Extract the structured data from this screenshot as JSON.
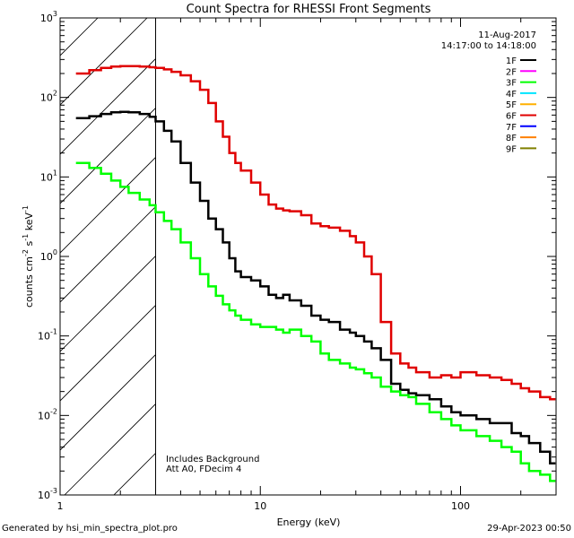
{
  "chart_data": {
    "type": "line",
    "title": "Count Spectra for RHESSI Front Segments",
    "xlabel": "Energy (keV)",
    "ylabel": "counts cm",
    "ylabel_parts": [
      "counts cm",
      "-2",
      " s",
      "-1",
      " keV",
      "-1"
    ],
    "xscale": "log",
    "yscale": "log",
    "xlim": [
      1,
      300
    ],
    "ylim": [
      0.001,
      1000
    ],
    "x_ticks": [
      {
        "value": 1,
        "label": "1"
      },
      {
        "value": 10,
        "label": "10"
      },
      {
        "value": 100,
        "label": "100"
      }
    ],
    "y_ticks": [
      {
        "value": 1000,
        "base": "10",
        "exp": "3"
      },
      {
        "value": 100,
        "base": "10",
        "exp": "2"
      },
      {
        "value": 10,
        "base": "10",
        "exp": "1"
      },
      {
        "value": 1,
        "base": "10",
        "exp": "0"
      },
      {
        "value": 0.1,
        "base": "10",
        "exp": "-1"
      },
      {
        "value": 0.01,
        "base": "10",
        "exp": "-2"
      },
      {
        "value": 0.001,
        "base": "10",
        "exp": "-3"
      }
    ],
    "date_label": "11-Aug-2017",
    "time_label": "14:17:00 to 14:18:00",
    "shaded_region": {
      "x_min": 1,
      "x_max": 3
    },
    "annotations": [
      "Includes Background",
      "Att A0, FDecim 4"
    ],
    "legend": [
      {
        "name": "1F",
        "color": "#000000"
      },
      {
        "name": "2F",
        "color": "#ff00ff"
      },
      {
        "name": "3F",
        "color": "#00ff00"
      },
      {
        "name": "4F",
        "color": "#00e5ff"
      },
      {
        "name": "5F",
        "color": "#ffb000"
      },
      {
        "name": "6F",
        "color": "#e00000"
      },
      {
        "name": "7F",
        "color": "#0000ff"
      },
      {
        "name": "8F",
        "color": "#ff8000"
      },
      {
        "name": "9F",
        "color": "#808000"
      }
    ],
    "series": [
      {
        "name": "1F",
        "color": "#000000",
        "x": [
          1.2,
          1.4,
          1.6,
          1.8,
          2.0,
          2.2,
          2.5,
          2.8,
          3.0,
          3.3,
          3.6,
          4.0,
          4.5,
          5.0,
          5.5,
          6.0,
          6.5,
          7.0,
          7.5,
          8.0,
          9.0,
          10,
          11,
          12,
          13,
          14,
          16,
          18,
          20,
          22,
          25,
          28,
          30,
          33,
          36,
          40,
          45,
          50,
          55,
          60,
          70,
          80,
          90,
          100,
          120,
          140,
          160,
          180,
          200,
          220,
          250,
          280
        ],
        "y": [
          55,
          58,
          62,
          65,
          66,
          65,
          62,
          57,
          50,
          38,
          28,
          15,
          8.5,
          5.0,
          3.0,
          2.2,
          1.5,
          0.95,
          0.65,
          0.55,
          0.5,
          0.42,
          0.33,
          0.3,
          0.33,
          0.28,
          0.24,
          0.18,
          0.16,
          0.15,
          0.12,
          0.11,
          0.1,
          0.085,
          0.07,
          0.05,
          0.025,
          0.021,
          0.019,
          0.018,
          0.016,
          0.013,
          0.011,
          0.01,
          0.009,
          0.008,
          0.008,
          0.006,
          0.0055,
          0.0045,
          0.0035,
          0.0025
        ]
      },
      {
        "name": "3F",
        "color": "#00ff00",
        "x": [
          1.2,
          1.4,
          1.6,
          1.8,
          2.0,
          2.2,
          2.5,
          2.8,
          3.0,
          3.3,
          3.6,
          4.0,
          4.5,
          5.0,
          5.5,
          6.0,
          6.5,
          7.0,
          7.5,
          8.0,
          9.0,
          10,
          11,
          12,
          13,
          14,
          16,
          18,
          20,
          22,
          25,
          28,
          30,
          33,
          36,
          40,
          45,
          50,
          55,
          60,
          70,
          80,
          90,
          100,
          120,
          140,
          160,
          180,
          200,
          220,
          250,
          280
        ],
        "y": [
          15,
          13,
          11,
          9.0,
          7.5,
          6.3,
          5.2,
          4.4,
          3.6,
          2.8,
          2.2,
          1.5,
          0.95,
          0.6,
          0.42,
          0.32,
          0.25,
          0.21,
          0.18,
          0.16,
          0.14,
          0.13,
          0.13,
          0.12,
          0.11,
          0.12,
          0.1,
          0.085,
          0.06,
          0.05,
          0.045,
          0.04,
          0.038,
          0.034,
          0.03,
          0.023,
          0.02,
          0.018,
          0.017,
          0.014,
          0.011,
          0.009,
          0.0075,
          0.0065,
          0.0055,
          0.0048,
          0.004,
          0.0035,
          0.0025,
          0.002,
          0.0018,
          0.0015
        ]
      },
      {
        "name": "6F",
        "color": "#e00000",
        "x": [
          1.2,
          1.4,
          1.6,
          1.8,
          2.0,
          2.2,
          2.5,
          2.8,
          3.0,
          3.3,
          3.6,
          4.0,
          4.5,
          5.0,
          5.5,
          6.0,
          6.5,
          7.0,
          7.5,
          8.0,
          9.0,
          10,
          11,
          12,
          13,
          14,
          16,
          18,
          20,
          22,
          25,
          28,
          30,
          33,
          36,
          40,
          45,
          50,
          55,
          60,
          70,
          80,
          90,
          100,
          120,
          140,
          160,
          180,
          200,
          220,
          250,
          280
        ],
        "y": [
          200,
          220,
          235,
          245,
          248,
          248,
          245,
          240,
          235,
          225,
          210,
          190,
          160,
          125,
          85,
          50,
          32,
          20,
          15,
          12,
          8.5,
          6.0,
          4.5,
          4.0,
          3.8,
          3.7,
          3.3,
          2.6,
          2.4,
          2.3,
          2.1,
          1.8,
          1.5,
          1.0,
          0.6,
          0.15,
          0.06,
          0.045,
          0.04,
          0.035,
          0.03,
          0.032,
          0.03,
          0.035,
          0.032,
          0.03,
          0.028,
          0.025,
          0.022,
          0.02,
          0.017,
          0.016
        ]
      }
    ]
  },
  "footer": {
    "generated_by": "Generated by hsi_min_spectra_plot.pro",
    "timestamp": "29-Apr-2023 00:50"
  }
}
